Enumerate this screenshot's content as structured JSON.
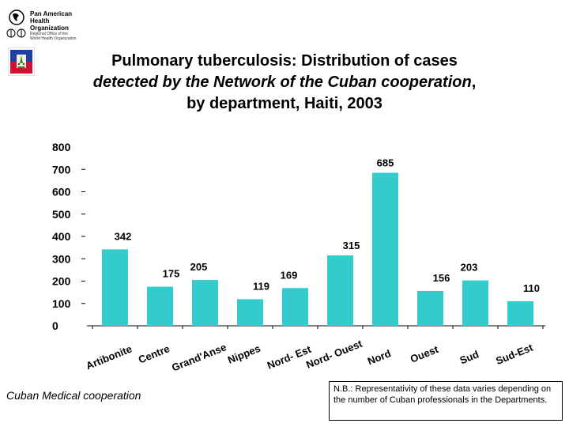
{
  "org": {
    "name_lines": [
      "Pan American",
      "Health",
      "Organization"
    ],
    "sub_lines": [
      "Regional Office of the",
      "World Health Organization"
    ]
  },
  "title": {
    "line1": "Pulmonary tuberculosis: Distribution of cases",
    "line2_italic": "detected by the Network of the Cuban cooperation",
    "line2_suffix": ",",
    "line3": "by department, Haiti, 2003"
  },
  "chart_data": {
    "type": "bar",
    "categories": [
      "Artibonite",
      "Centre",
      "Grand'Anse",
      "Nippes",
      "Nord- Est",
      "Nord- Ouest",
      "Nord",
      "Ouest",
      "Sud",
      "Sud-Est"
    ],
    "values": [
      342,
      175,
      205,
      119,
      169,
      315,
      685,
      156,
      203,
      110
    ],
    "y_ticks": [
      0,
      100,
      200,
      300,
      400,
      500,
      600,
      700,
      800
    ],
    "ylim": [
      0,
      800
    ],
    "grid": false,
    "bar_color": "#33CCCC"
  },
  "footer": {
    "source": "Cuban Medical cooperation",
    "note": "N.B.: Representativity of these data varies depending on the number of Cuban professionals in the Departments."
  }
}
